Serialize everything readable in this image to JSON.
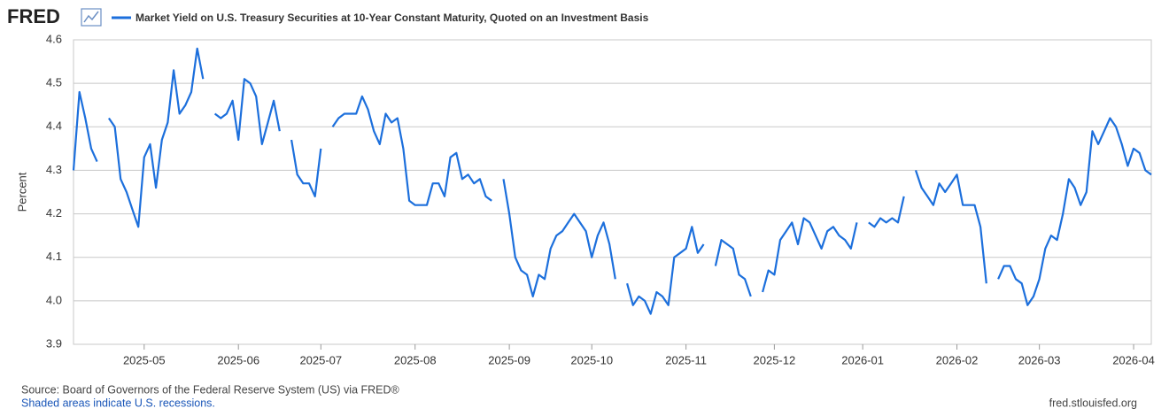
{
  "chart_data": {
    "type": "line",
    "logo": "FRED",
    "y_label": "Percent",
    "source": "Source: Board of Governors of the Federal Reserve System (US) via FRED®",
    "note": "Shaded areas indicate U.S. recessions.",
    "website": "fred.stlouisfed.org",
    "ylim": [
      3.9,
      4.6
    ],
    "yticks": [
      3.9,
      {
        "value": 4.0,
        "label": "4.0"
      },
      4.1,
      4.2,
      4.3,
      4.4,
      4.5,
      4.6
    ],
    "grid": true,
    "categories": [
      null,
      null,
      null,
      null,
      null,
      null,
      null,
      null,
      null,
      null,
      null,
      null,
      "2025-05",
      null,
      null,
      null,
      null,
      null,
      null,
      null,
      null,
      null,
      null,
      null,
      null,
      null,
      null,
      null,
      "2025-06",
      null,
      null,
      null,
      null,
      null,
      null,
      null,
      null,
      null,
      null,
      null,
      null,
      null,
      "2025-07",
      null,
      null,
      null,
      null,
      null,
      null,
      null,
      null,
      null,
      null,
      null,
      null,
      null,
      null,
      null,
      "2025-08",
      null,
      null,
      null,
      null,
      null,
      null,
      null,
      null,
      null,
      null,
      null,
      null,
      null,
      null,
      null,
      "2025-09",
      null,
      null,
      null,
      null,
      null,
      null,
      null,
      null,
      null,
      null,
      null,
      null,
      null,
      "2025-10",
      null,
      null,
      null,
      null,
      null,
      null,
      null,
      null,
      null,
      null,
      null,
      null,
      null,
      null,
      null,
      "2025-11",
      null,
      null,
      null,
      null,
      null,
      null,
      null,
      null,
      null,
      null,
      null,
      null,
      null,
      null,
      "2025-12",
      null,
      null,
      null,
      null,
      null,
      null,
      null,
      null,
      null,
      null,
      null,
      null,
      null,
      null,
      "2026-01",
      null,
      null,
      null,
      null,
      null,
      null,
      null,
      null,
      null,
      null,
      null,
      null,
      null,
      null,
      null,
      "2026-02",
      null,
      null,
      null,
      null,
      null,
      null,
      null,
      null,
      null,
      null,
      null,
      null,
      null,
      "2026-03",
      null,
      null,
      null,
      null,
      null,
      null,
      null,
      null,
      null,
      null,
      null,
      null,
      null,
      null,
      null,
      "2026-04",
      null,
      null,
      null
    ],
    "series": [
      {
        "name": "Market Yield on U.S. Treasury Securities at 10-Year Constant Maturity, Quoted on an Investment Basis",
        "color": "#1c6fdc",
        "values": [
          4.3,
          4.48,
          4.42,
          4.35,
          4.32,
          null,
          4.42,
          4.4,
          4.28,
          4.25,
          4.21,
          4.17,
          4.33,
          4.36,
          4.26,
          4.37,
          4.41,
          4.53,
          4.43,
          4.45,
          4.48,
          4.58,
          4.51,
          null,
          4.43,
          4.42,
          4.43,
          4.46,
          4.37,
          4.51,
          4.5,
          4.47,
          4.36,
          4.41,
          4.46,
          4.39,
          null,
          4.37,
          4.29,
          4.27,
          4.27,
          4.24,
          4.35,
          null,
          4.4,
          4.42,
          4.43,
          4.43,
          4.43,
          4.47,
          4.44,
          4.39,
          4.36,
          4.43,
          4.41,
          4.42,
          4.35,
          4.23,
          4.22,
          4.22,
          4.22,
          4.27,
          4.27,
          4.24,
          4.33,
          4.34,
          4.28,
          4.29,
          4.27,
          4.28,
          4.24,
          4.23,
          null,
          4.28,
          4.2,
          4.1,
          4.07,
          4.06,
          4.01,
          4.06,
          4.05,
          4.12,
          4.15,
          4.16,
          4.18,
          4.2,
          4.18,
          4.16,
          4.1,
          4.15,
          4.18,
          4.13,
          4.05,
          null,
          4.04,
          3.99,
          4.01,
          4.0,
          3.97,
          4.02,
          4.01,
          3.99,
          4.1,
          4.11,
          4.12,
          4.17,
          4.11,
          4.13,
          null,
          4.08,
          4.14,
          4.13,
          4.12,
          4.06,
          4.05,
          4.01,
          null,
          4.02,
          4.07,
          4.06,
          4.14,
          4.16,
          4.18,
          4.13,
          4.19,
          4.18,
          4.15,
          4.12,
          4.16,
          4.17,
          4.15,
          4.14,
          4.12,
          4.18,
          null,
          4.18,
          4.17,
          4.19,
          4.18,
          4.19,
          4.18,
          4.24,
          null,
          4.3,
          4.26,
          4.24,
          4.22,
          4.27,
          4.25,
          4.27,
          4.29,
          4.22,
          4.22,
          4.22,
          4.17,
          4.04,
          null,
          4.05,
          4.08,
          4.08,
          4.05,
          4.04,
          3.99,
          4.01,
          4.05,
          4.12,
          4.15,
          4.14,
          4.2,
          4.28,
          4.26,
          4.22,
          4.25,
          4.39,
          4.36,
          4.39,
          4.42,
          4.4,
          4.36,
          4.31,
          4.35,
          4.34,
          4.3,
          4.29
        ]
      }
    ]
  }
}
